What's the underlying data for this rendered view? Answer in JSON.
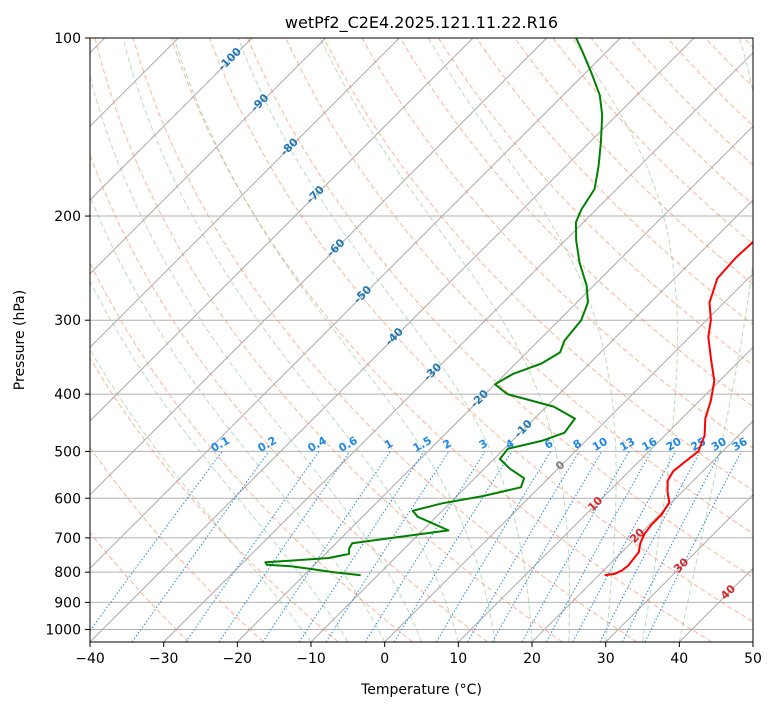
{
  "chart_data": {
    "type": "line",
    "title": "wetPf2_C2E4.2025.121.11.22.R16",
    "xlabel": "Temperature (°C)",
    "ylabel": "Pressure (hPa)",
    "xlim": [
      -40,
      50
    ],
    "ylim": [
      1050,
      100
    ],
    "y_scale": "log",
    "x_ticks": [
      "−40",
      "−30",
      "−20",
      "−10",
      "0",
      "10",
      "20",
      "30",
      "40",
      "50"
    ],
    "y_ticks": [
      {
        "p": 100,
        "label": "100"
      },
      {
        "p": 200,
        "label": "200"
      },
      {
        "p": 300,
        "label": "300"
      },
      {
        "p": 400,
        "label": "400"
      },
      {
        "p": 500,
        "label": "500"
      },
      {
        "p": 600,
        "label": "600"
      },
      {
        "p": 700,
        "label": "700"
      },
      {
        "p": 800,
        "label": "800"
      },
      {
        "p": 900,
        "label": "900"
      },
      {
        "p": 1000,
        "label": "1000"
      }
    ],
    "skew": true,
    "grid": true,
    "series": [
      {
        "color": "#ff0000",
        "points": [
          [
            810,
            20.8
          ],
          [
            805,
            22.0
          ],
          [
            795,
            22.5
          ],
          [
            780,
            22.7
          ],
          [
            740,
            22.3
          ],
          [
            715,
            21.3
          ],
          [
            690,
            20.6
          ],
          [
            665,
            20.3
          ],
          [
            640,
            20.3
          ],
          [
            610,
            19.7
          ],
          [
            585,
            18.0
          ],
          [
            560,
            16.5
          ],
          [
            540,
            16.0
          ],
          [
            520,
            16.3
          ],
          [
            500,
            16.7
          ],
          [
            470,
            15.4
          ],
          [
            440,
            13.2
          ],
          [
            410,
            11.5
          ],
          [
            380,
            9.3
          ],
          [
            350,
            6.0
          ],
          [
            320,
            2.5
          ],
          [
            300,
            0.6
          ],
          [
            280,
            -2.0
          ],
          [
            255,
            -4.2
          ],
          [
            235,
            -4.5
          ],
          [
            215,
            -4.2
          ],
          [
            200,
            -4.5
          ],
          [
            190,
            -5.2
          ],
          [
            175,
            -6.0
          ],
          [
            160,
            -6.3
          ],
          [
            150,
            -7.0
          ],
          [
            140,
            -8.0
          ],
          [
            130,
            -9.5
          ],
          [
            120,
            -11.0
          ],
          [
            110,
            -12.0
          ],
          [
            100,
            -13.0
          ]
        ]
      },
      {
        "color": "#008000",
        "points": [
          [
            810,
            -12.3
          ],
          [
            800,
            -16.5
          ],
          [
            790,
            -20.0
          ],
          [
            782,
            -23.0
          ],
          [
            777,
            -26.5
          ],
          [
            770,
            -27.0
          ],
          [
            765,
            -24.0
          ],
          [
            757,
            -19.0
          ],
          [
            745,
            -16.8
          ],
          [
            730,
            -17.5
          ],
          [
            715,
            -17.8
          ],
          [
            700,
            -13.0
          ],
          [
            680,
            -6.5
          ],
          [
            665,
            -9.0
          ],
          [
            645,
            -12.5
          ],
          [
            630,
            -14.0
          ],
          [
            612,
            -11.0
          ],
          [
            595,
            -6.5
          ],
          [
            575,
            -2.5
          ],
          [
            555,
            -3.3
          ],
          [
            535,
            -6.5
          ],
          [
            515,
            -9.2
          ],
          [
            495,
            -9.5
          ],
          [
            480,
            -6.0
          ],
          [
            465,
            -4.0
          ],
          [
            440,
            -4.5
          ],
          [
            420,
            -9.0
          ],
          [
            400,
            -17.0
          ],
          [
            385,
            -20.0
          ],
          [
            370,
            -19.0
          ],
          [
            355,
            -16.5
          ],
          [
            340,
            -15.5
          ],
          [
            325,
            -16.5
          ],
          [
            300,
            -17.0
          ],
          [
            280,
            -18.5
          ],
          [
            262,
            -21.0
          ],
          [
            240,
            -25.0
          ],
          [
            220,
            -28.5
          ],
          [
            205,
            -31.0
          ],
          [
            195,
            -32.0
          ],
          [
            180,
            -33.0
          ],
          [
            165,
            -35.5
          ],
          [
            150,
            -38.5
          ],
          [
            135,
            -42.0
          ],
          [
            125,
            -45.0
          ],
          [
            115,
            -49.0
          ],
          [
            105,
            -53.5
          ],
          [
            100,
            -56.0
          ]
        ]
      }
    ],
    "dry_adiabat_labels": [
      "-100",
      "-90",
      "-80",
      "-70",
      "-60",
      "-50",
      "-40",
      "-30",
      "-20",
      "-10",
      "0",
      "10",
      "20",
      "30",
      "40"
    ],
    "mixing_ratio_labels": [
      "0.1",
      "0.2",
      "0.4",
      "0.6",
      "1",
      "1.5",
      "2",
      "3",
      "4",
      "6",
      "8",
      "10",
      "13",
      "16",
      "20",
      "25",
      "30",
      "36"
    ],
    "colors": {
      "temperature": "#ff0000",
      "dewpoint": "#008000",
      "isotherm": "#aaaaaa",
      "dry_adiabat": "#ff7f50",
      "moist_adiabat": "#7fbf7f",
      "mixing_ratio": "#1e88e5",
      "iso_label_dark": "#1f77b4",
      "iso_label_warm": "#d62728",
      "iso_label_zero": "#808080"
    }
  }
}
